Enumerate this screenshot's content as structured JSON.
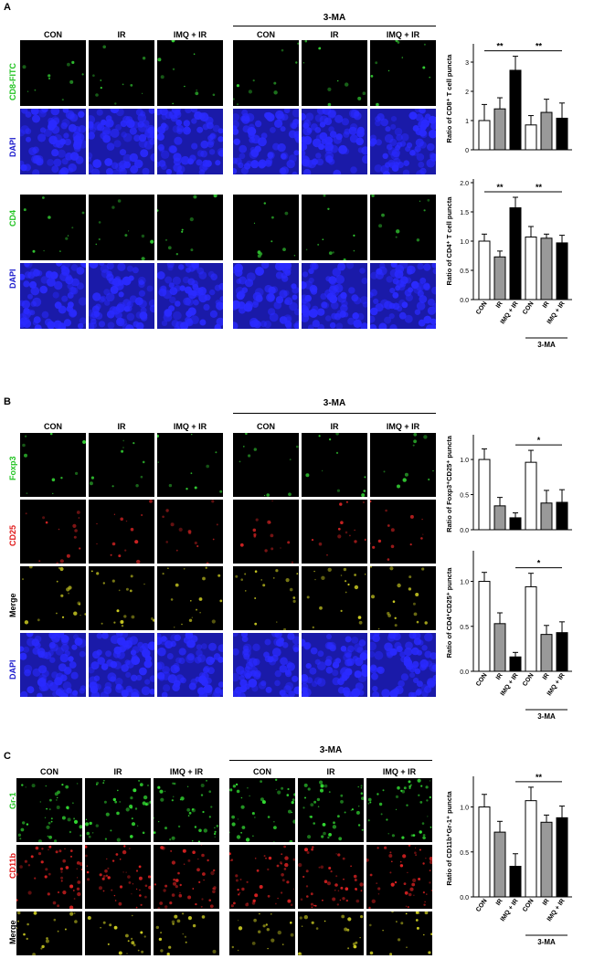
{
  "panels": {
    "A": {
      "letter": "A",
      "ma_label": "3-MA",
      "columns": [
        "CON",
        "IR",
        "IMQ + IR",
        "CON",
        "IR",
        "IMQ + IR"
      ],
      "rows_top": [
        "CD8-FITC",
        "DAPI"
      ],
      "rows_bottom": [
        "CD4",
        "DAPI"
      ]
    },
    "B": {
      "letter": "B",
      "ma_label": "3-MA",
      "columns": [
        "CON",
        "IR",
        "IMQ  + IR",
        "CON",
        "IR",
        "IMQ  + IR"
      ],
      "rows": [
        "Foxp3",
        "CD25",
        "Merge",
        "DAPI"
      ]
    },
    "C": {
      "letter": "C",
      "ma_label": "3-MA",
      "columns": [
        "CON",
        "IR",
        "IMQ + IR",
        "CON",
        "IR",
        "IMQ + IR"
      ],
      "rows": [
        "Gr-1",
        "CD11b",
        "Merge"
      ]
    }
  },
  "colors": {
    "green_label": "#22c322",
    "red_label": "#e01818",
    "blue_label": "#1a1acc",
    "dapi_blue": "#1a1aa8",
    "bar_white": "#ffffff",
    "bar_gray": "#999999",
    "bar_black": "#000000"
  },
  "chart_data": [
    {
      "id": "A1",
      "type": "bar",
      "ylabel": "Ratio  of CD8⁺ T  cell puncta",
      "categories": [
        "CON",
        "IR",
        "IMQ + IR",
        "CON",
        "IR",
        "IMQ + IR"
      ],
      "values": [
        1.0,
        1.4,
        2.72,
        0.85,
        1.28,
        1.08
      ],
      "errors": [
        0.55,
        0.38,
        0.48,
        0.32,
        0.45,
        0.52
      ],
      "ylim": [
        0,
        3.5
      ],
      "yticks": [
        0,
        1,
        2,
        3
      ],
      "significance": [
        {
          "from": 0,
          "to": 2,
          "label": "**"
        },
        {
          "from": 2,
          "to": 5,
          "label": "**"
        }
      ]
    },
    {
      "id": "A2",
      "type": "bar",
      "ylabel": "Ratio of CD4⁺ T  cell puncta",
      "categories": [
        "CON",
        "IR",
        "IMQ + IR",
        "CON",
        "IR",
        "IMQ + IR"
      ],
      "values": [
        1.0,
        0.73,
        1.57,
        1.07,
        1.05,
        0.97
      ],
      "errors": [
        0.12,
        0.1,
        0.18,
        0.18,
        0.07,
        0.13
      ],
      "ylim": [
        0,
        2.0
      ],
      "yticks": [
        0,
        0.5,
        1.0,
        1.5,
        2.0
      ],
      "significance": [
        {
          "from": 0,
          "to": 2,
          "label": "**"
        },
        {
          "from": 2,
          "to": 5,
          "label": "**"
        }
      ],
      "xlabels": [
        "CON",
        "IR",
        "IMQ + IR",
        "CON",
        "IR",
        "IMQ + IR"
      ],
      "group_label": "3-MA"
    },
    {
      "id": "B1",
      "type": "bar",
      "ylabel": "Ratio of Foxp3⁺CD25⁺ puncta",
      "categories": [
        "CON",
        "IR",
        "IMQ + IR",
        "CON",
        "IR",
        "IMQ + IR"
      ],
      "values": [
        1.0,
        0.34,
        0.17,
        0.96,
        0.38,
        0.39
      ],
      "errors": [
        0.15,
        0.12,
        0.07,
        0.17,
        0.18,
        0.18
      ],
      "ylim": [
        0,
        1.3
      ],
      "yticks": [
        0,
        0.5,
        1.0
      ],
      "significance": [
        {
          "from": 2,
          "to": 5,
          "label": "*"
        }
      ]
    },
    {
      "id": "B2",
      "type": "bar",
      "ylabel": "Ratio of CD4⁺CD25⁺ puncta",
      "categories": [
        "CON",
        "IR",
        "IMQ + IR",
        "CON",
        "IR",
        "IMQ + IR"
      ],
      "values": [
        1.0,
        0.53,
        0.16,
        0.94,
        0.41,
        0.43
      ],
      "errors": [
        0.1,
        0.12,
        0.05,
        0.15,
        0.1,
        0.12
      ],
      "ylim": [
        0,
        1.3
      ],
      "yticks": [
        0,
        0.5,
        1.0
      ],
      "significance": [
        {
          "from": 2,
          "to": 5,
          "label": "*"
        }
      ],
      "xlabels": [
        "CON",
        "IR",
        "IMQ + IR",
        "CON",
        "IR",
        "IMQ + IR"
      ],
      "group_label": "3-MA"
    },
    {
      "id": "C1",
      "type": "bar",
      "ylabel": "Ratio of CD11b⁺Gr-1⁺ puncta",
      "categories": [
        "CON",
        "IR",
        "IMQ + IR",
        "CON",
        "IR",
        "IMQ + IR"
      ],
      "values": [
        1.0,
        0.72,
        0.34,
        1.07,
        0.83,
        0.88
      ],
      "errors": [
        0.14,
        0.12,
        0.14,
        0.15,
        0.08,
        0.13
      ],
      "ylim": [
        0,
        1.3
      ],
      "yticks": [
        0,
        0.5,
        1.0
      ],
      "significance": [
        {
          "from": 2,
          "to": 5,
          "label": "**"
        }
      ],
      "xlabels": [
        "CON",
        "IR",
        "IMQ + IR",
        "CON",
        "IR",
        "IMQ + IR"
      ],
      "group_label": "3-MA"
    }
  ]
}
